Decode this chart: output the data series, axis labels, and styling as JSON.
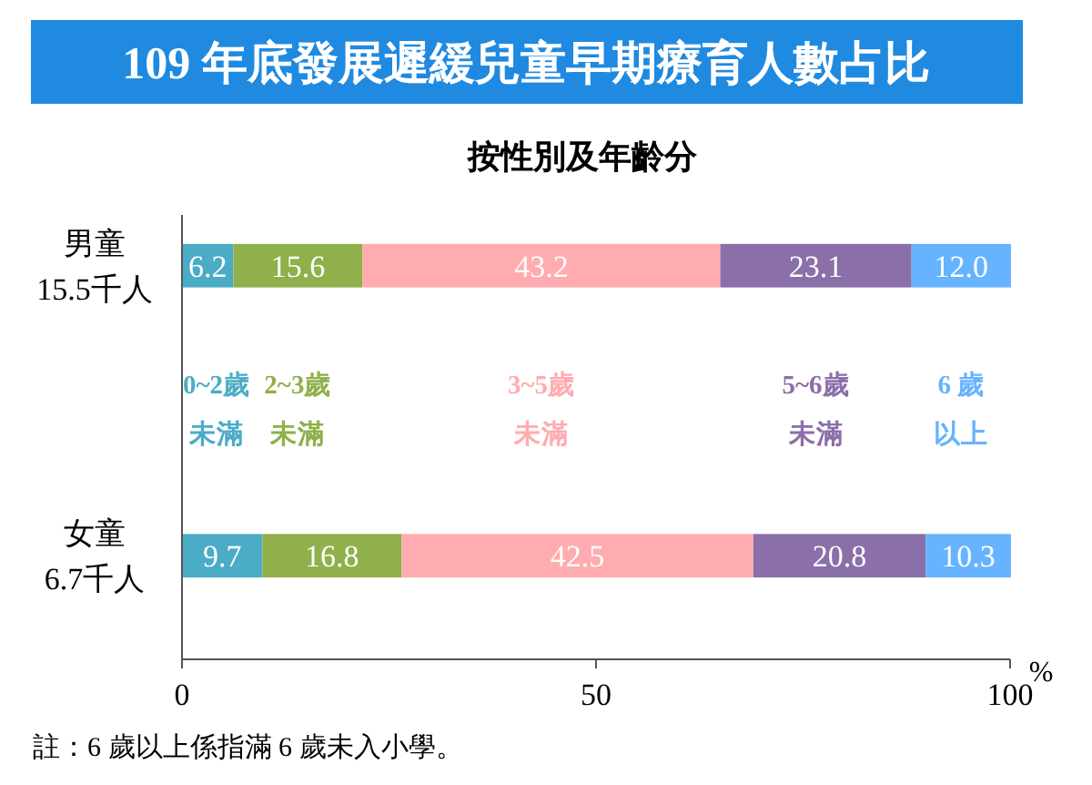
{
  "chart_data": {
    "type": "bar",
    "orientation": "horizontal",
    "stacked": true,
    "title": "109 年底發展遲緩兒童早期療育人數占比",
    "subtitle": "按性別及年齡分",
    "xlabel": "%",
    "categories": [
      "男童\n15.5千人",
      "女童\n6.7千人"
    ],
    "series": [
      {
        "name": "0~2歲未滿",
        "color": "#4bacc6",
        "values": [
          6.2,
          9.7
        ],
        "value_labels": [
          "6.2",
          "9.7"
        ]
      },
      {
        "name": "2~3歲未滿",
        "color": "#8fb04a",
        "values": [
          15.6,
          16.8
        ],
        "value_labels": [
          "15.6",
          "16.8"
        ]
      },
      {
        "name": "3~5歲未滿",
        "color": "#ffacb0",
        "values": [
          43.2,
          42.5
        ],
        "value_labels": [
          "43.2",
          "42.5"
        ]
      },
      {
        "name": "5~6歲未滿",
        "color": "#8a6fa8",
        "values": [
          23.1,
          20.8
        ],
        "value_labels": [
          "23.1",
          "20.8"
        ]
      },
      {
        "name": "6 歲以上",
        "color": "#66b3ff",
        "values": [
          12.0,
          10.3
        ],
        "value_labels": [
          "12.0",
          "10.3"
        ]
      }
    ],
    "xlim": [
      0,
      100
    ],
    "xticks": [
      0,
      50,
      100
    ],
    "legend": "center",
    "grid": false,
    "annotations": [
      "註：6 歲以上係指滿 6 歲未入小學。"
    ]
  }
}
